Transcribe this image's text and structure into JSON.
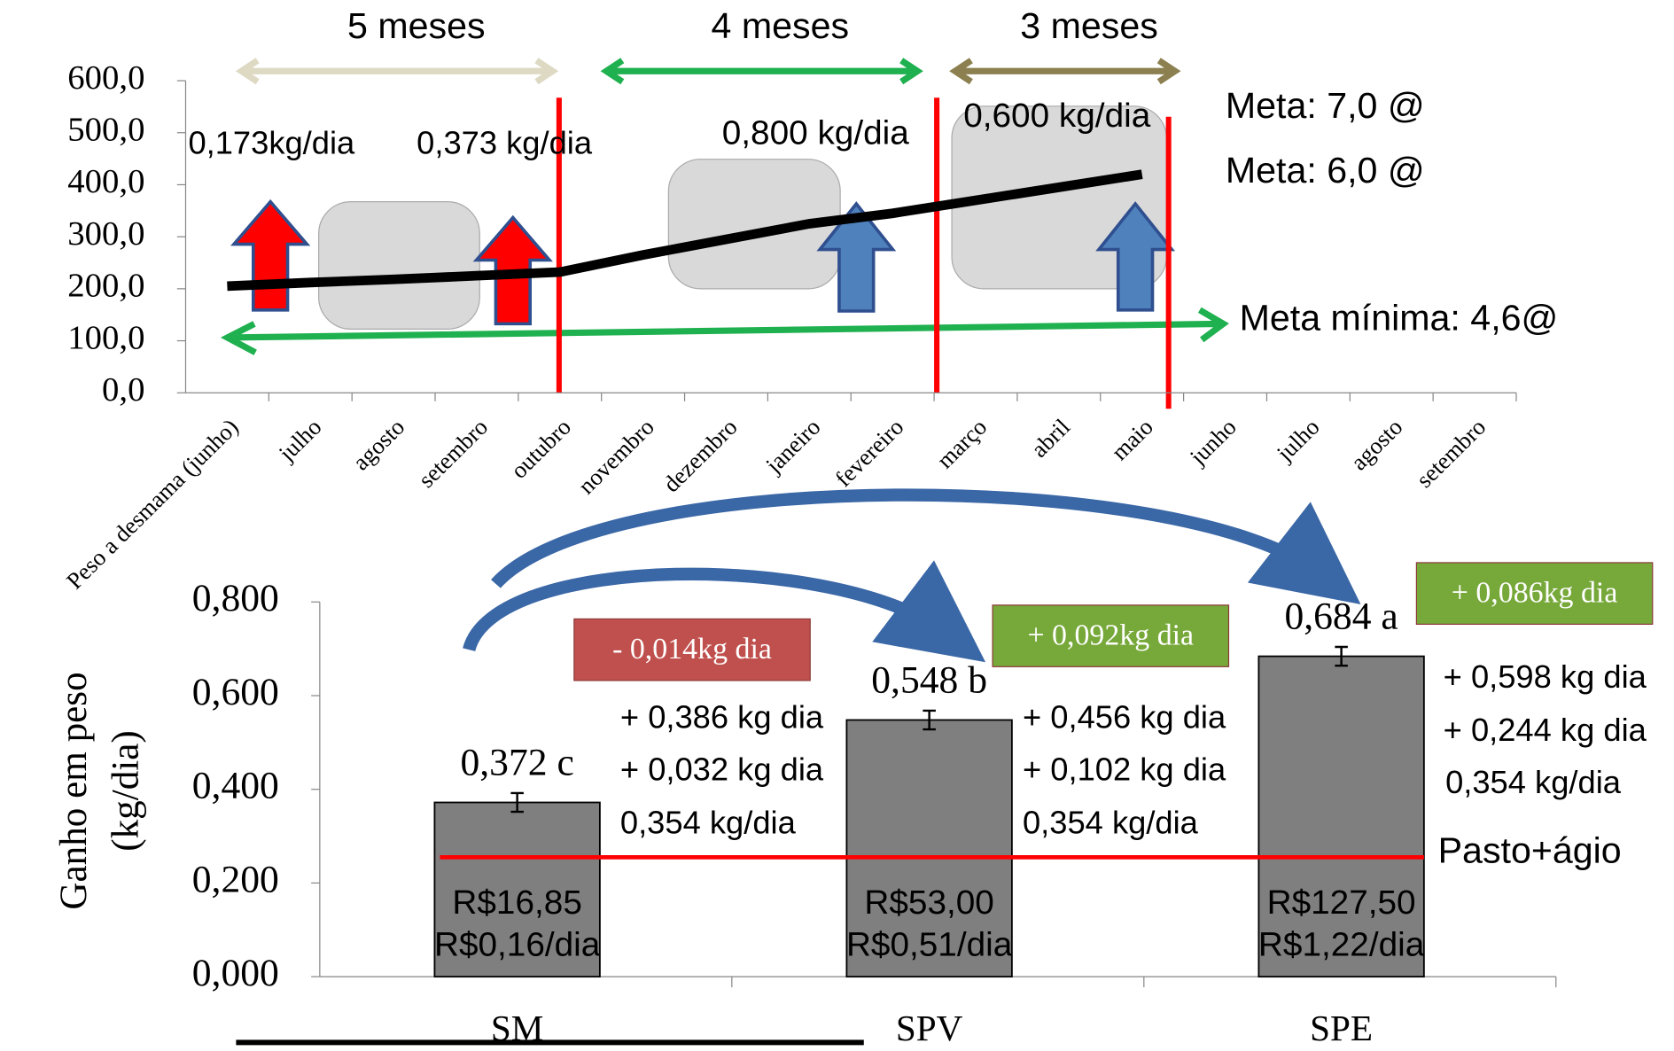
{
  "chart_data": [
    {
      "type": "line",
      "categories": [
        "Peso a desmama (junho)",
        "julho",
        "agosto",
        "setembro",
        "outubro",
        "novembro",
        "dezembro",
        "janeiro",
        "fevereiro",
        "março",
        "abril",
        "maio",
        "junho",
        "julho",
        "agosto",
        "setembro"
      ],
      "series": [
        {
          "color": "#000000",
          "values": [
            205,
            212,
            218,
            225,
            232,
            265,
            295,
            325,
            345,
            370,
            395,
            420,
            null,
            null,
            null,
            null
          ]
        }
      ],
      "ylim": [
        0,
        600
      ],
      "yticks": [
        {
          "value": 0,
          "label": "0,0"
        },
        {
          "value": 100,
          "label": "100,0"
        },
        {
          "value": 200,
          "label": "200,0"
        },
        {
          "value": 300,
          "label": "300,0"
        },
        {
          "value": 400,
          "label": "400,0"
        },
        {
          "value": 500,
          "label": "500,0"
        },
        {
          "value": 600,
          "label": "600,0"
        }
      ],
      "annotations": [
        "5 meses",
        "4 meses",
        "3 meses",
        "0,173kg/dia",
        "0,373 kg/dia",
        "0,800 kg/dia",
        "0,600 kg/dia",
        "Meta: 7,0 @",
        "Meta: 6,0 @",
        "Meta mínima: 4,6@"
      ]
    },
    {
      "type": "bar",
      "y_label": [
        "Ganho em peso",
        "(kg/dia)"
      ],
      "categories": [
        "SM",
        "SPV",
        "SPE"
      ],
      "values": [
        0.372,
        0.548,
        0.684
      ],
      "value_labels": [
        "0,372 c",
        "0,548 b",
        "0,684 a"
      ],
      "errors": [
        0.02,
        0.02,
        0.02
      ],
      "color": "#7f7f7f",
      "ylim": [
        0,
        0.8
      ],
      "yticks": [
        {
          "value": 0,
          "label": "0,000"
        },
        {
          "value": 0.2,
          "label": "0,200"
        },
        {
          "value": 0.4,
          "label": "0,400"
        },
        {
          "value": 0.6,
          "label": "0,600"
        },
        {
          "value": 0.8,
          "label": "0,800"
        }
      ],
      "reference_line": {
        "value": 0.255,
        "label": "Pasto+ágio",
        "color": "#ff0000"
      },
      "cost_labels": [
        [
          "R$16,85",
          "R$0,16/dia"
        ],
        [
          "R$53,00",
          "R$0,51/dia"
        ],
        [
          "R$127,50",
          "R$1,22/dia"
        ]
      ],
      "boxes": [
        {
          "text": "- 0,014kg dia",
          "color": "#c0504d"
        },
        {
          "text": "+ 0,092kg dia",
          "color": "#77a83a"
        },
        {
          "text": "+ 0,086kg dia",
          "color": "#77a83a"
        }
      ],
      "annotations": [
        "+ 0,386 kg dia",
        "+ 0,032 kg dia",
        "0,354 kg/dia",
        "+ 0,456 kg dia",
        "+ 0,102 kg dia",
        "0,354 kg/dia",
        "+ 0,598 kg dia",
        "+ 0,244 kg dia",
        "0,354 kg/dia"
      ]
    }
  ]
}
